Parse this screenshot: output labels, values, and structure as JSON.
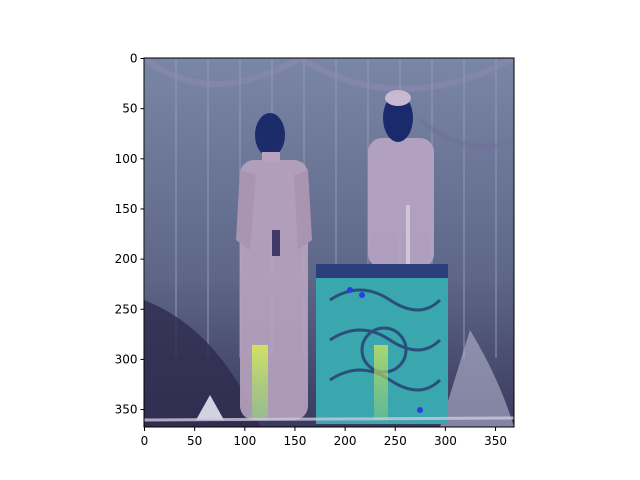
{
  "figure": {
    "x_ticks": [
      "0",
      "50",
      "100",
      "150",
      "200",
      "250",
      "300",
      "350"
    ],
    "y_ticks": [
      "0",
      "50",
      "100",
      "150",
      "200",
      "250",
      "300",
      "350"
    ]
  },
  "image": {
    "subjects": [
      "standing-figure-left",
      "standing-figure-right",
      "draped-table"
    ],
    "colors": {
      "background": "#5f6a8f",
      "curtain": "#7b89a8",
      "figure": "#bba7c4",
      "face": "#1a2a66",
      "table": "#3bb2b3",
      "highlight": "#c7e65a"
    }
  }
}
